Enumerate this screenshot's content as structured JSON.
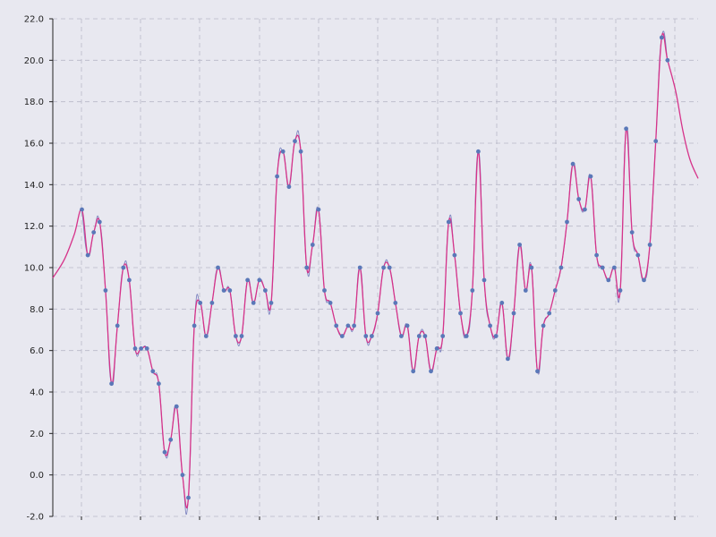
{
  "chart_data": {
    "type": "line",
    "title": "",
    "xlabel": "",
    "ylabel": "",
    "ylim": [
      -2,
      22
    ],
    "yticks": [
      -2,
      0,
      2,
      4,
      6,
      8,
      10,
      12,
      14,
      16,
      18,
      20,
      22
    ],
    "ytick_labels": [
      "-2.0",
      "0.0",
      "2.0",
      "4.0",
      "6.0",
      "8.0",
      "10.0",
      "12.0",
      "14.0",
      "16.0",
      "18.0",
      "20.0",
      "22.0"
    ],
    "grid": true,
    "series": [
      {
        "role": "samples",
        "values": [
          12.8,
          10.6,
          11.7,
          12.2,
          8.9,
          4.4,
          7.2,
          10.0,
          9.4,
          6.1,
          6.1,
          6.1,
          5.0,
          4.4,
          1.1,
          1.7,
          3.3,
          0.0,
          -1.1,
          7.2,
          8.3,
          6.7,
          8.3,
          10.0,
          8.9,
          8.9,
          6.7,
          6.7,
          9.4,
          8.3,
          9.4,
          8.9,
          8.3,
          14.4,
          15.6,
          13.9,
          16.1,
          15.6,
          10.0,
          11.1,
          12.8,
          8.9,
          8.3,
          7.2,
          6.7,
          7.2,
          7.2,
          10.0,
          6.7,
          6.7,
          7.8,
          10.0,
          10.0,
          8.3,
          6.7,
          7.2,
          5.0,
          6.7,
          6.7,
          5.0,
          6.1,
          6.7,
          12.2,
          10.6,
          7.8,
          6.7,
          8.9,
          15.6,
          9.4,
          7.2,
          6.7,
          8.3,
          5.6,
          7.8,
          11.1,
          8.9,
          10.0,
          5.0,
          7.2,
          7.8,
          8.9,
          10.0,
          12.2,
          15.0,
          13.3,
          12.8,
          14.4,
          10.6,
          10.0,
          9.4,
          10.0,
          8.9,
          16.7,
          11.7,
          10.6,
          9.4,
          11.1,
          16.1,
          21.1,
          20.0
        ]
      }
    ],
    "colors": {
      "smooth_line": "#d6338a",
      "raw_line": "#7e84c0",
      "points": "#5a78b8",
      "grid": "#b8b8c8"
    }
  }
}
